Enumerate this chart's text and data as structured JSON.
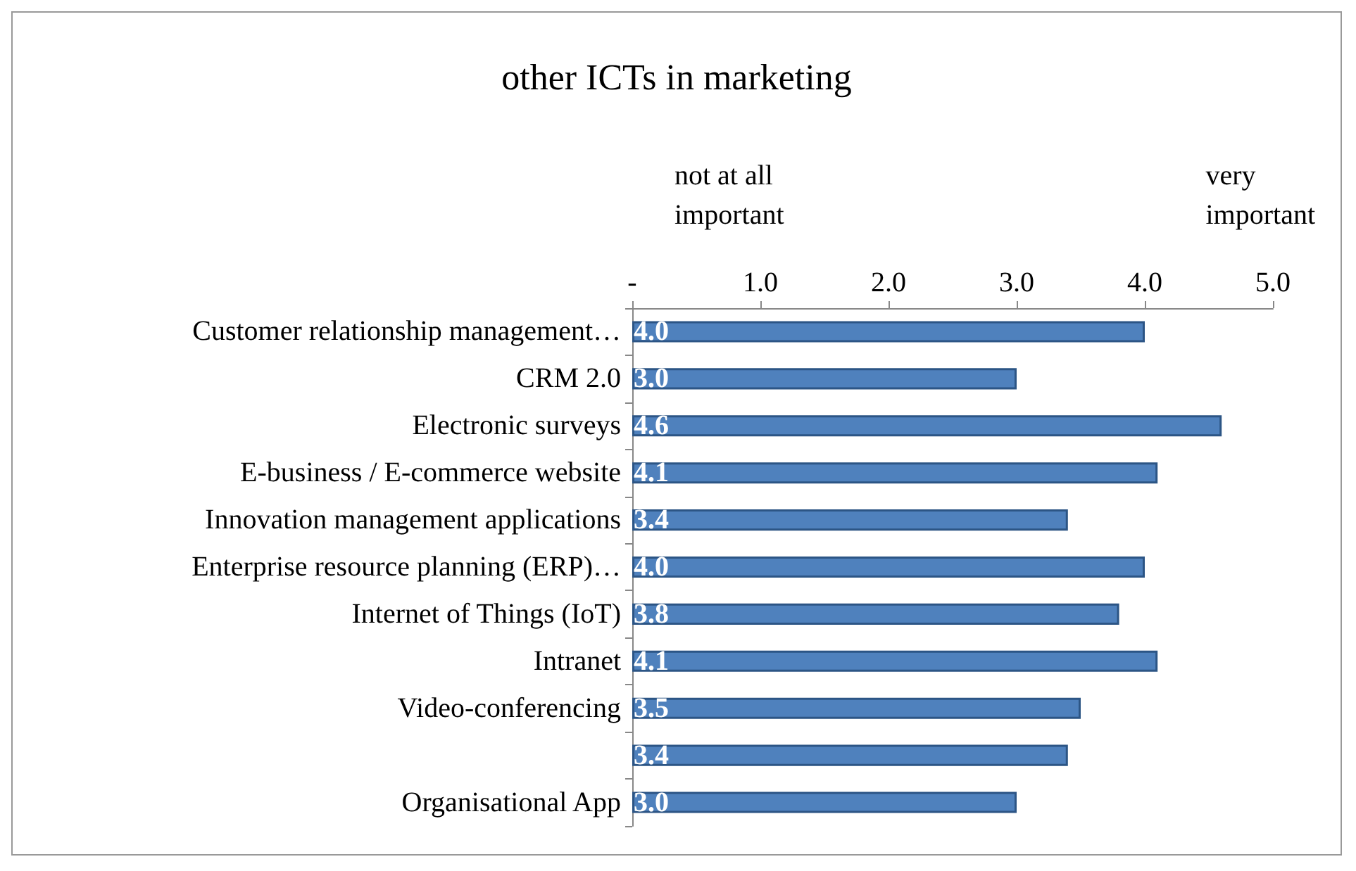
{
  "chart_data": {
    "type": "bar",
    "orientation": "horizontal",
    "title": "other ICTs in marketing",
    "categories": [
      "Customer relationship management…",
      "CRM 2.0",
      "Electronic surveys",
      "E-business / E-commerce website",
      "Innovation management applications",
      "Enterprise resource planning (ERP)…",
      "Internet of Things (IoT)",
      "Intranet",
      "Video-conferencing",
      null,
      "Organisational App"
    ],
    "values": [
      4.0,
      3.0,
      4.6,
      4.1,
      3.4,
      4.0,
      3.8,
      4.1,
      3.5,
      3.4,
      3.0
    ],
    "value_labels": [
      "4.0",
      "3.0",
      "4.6",
      "4.1",
      "3.4",
      "4.0",
      "3.8",
      "4.1",
      "3.5",
      "3.4",
      "3.0"
    ],
    "color": "#4f81bd",
    "xlim": [
      0,
      5
    ],
    "xticks": [
      {
        "value": 0,
        "label": "-"
      },
      {
        "value": 1,
        "label": "1.0"
      },
      {
        "value": 2,
        "label": "2.0"
      },
      {
        "value": 3,
        "label": "3.0"
      },
      {
        "value": 4,
        "label": "4.0"
      },
      {
        "value": 5,
        "label": "5.0"
      }
    ],
    "annotations": [
      "not at all\nimportant",
      "very\nimportant"
    ],
    "grid": false
  }
}
